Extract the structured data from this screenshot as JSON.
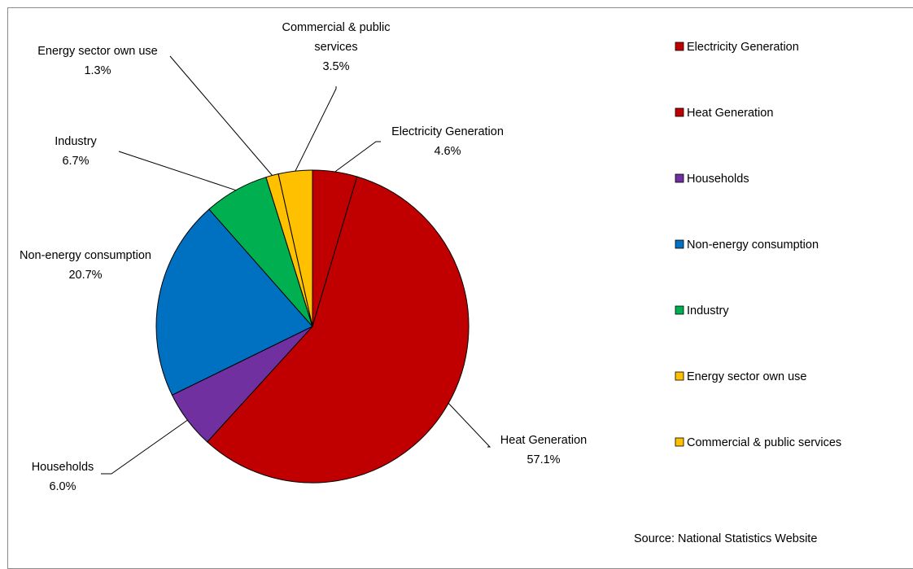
{
  "chart_data": {
    "type": "pie",
    "title": "",
    "slices": [
      {
        "label": "Electricity Generation",
        "value": 4.6,
        "value_label": "4.6%",
        "color": "#C00000"
      },
      {
        "label": "Heat Generation",
        "value": 57.1,
        "value_label": "57.1%",
        "color": "#C00000"
      },
      {
        "label": "Households",
        "value": 6.0,
        "value_label": "6.0%",
        "color": "#7030A0"
      },
      {
        "label": "Non-energy consumption",
        "value": 20.7,
        "value_label": "20.7%",
        "color": "#0070C0"
      },
      {
        "label": "Industry",
        "value": 6.7,
        "value_label": "6.7%",
        "color": "#00B050"
      },
      {
        "label": "Energy sector own use",
        "value": 1.3,
        "value_label": "1.3%",
        "color": "#FFC000"
      },
      {
        "label": "Commercial & public services",
        "value": 3.5,
        "value_label": "3.5%",
        "color": "#FFC000"
      }
    ],
    "legend_position": "right",
    "source": "Source: National Statistics Website"
  }
}
